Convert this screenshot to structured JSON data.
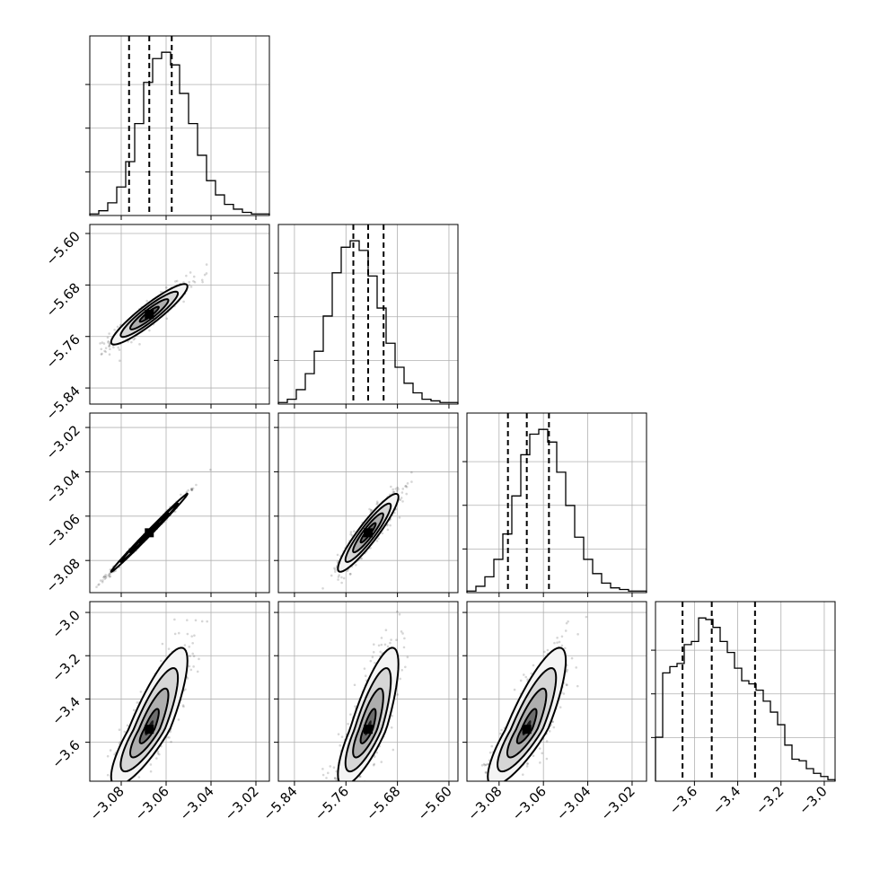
{
  "chart_data": {
    "type": "corner",
    "grid": true,
    "parameters": [
      {
        "range": [
          -3.094,
          -3.014
        ],
        "ticks": [
          -3.08,
          -3.06,
          -3.04,
          -3.02
        ],
        "tick_labels": [
          "−3.08",
          "−3.06",
          "−3.04",
          "−3.02"
        ]
      },
      {
        "range": [
          -5.865,
          -5.586
        ],
        "ticks": [
          -5.84,
          -5.76,
          -5.68,
          -5.6
        ],
        "tick_labels": [
          "−5.84",
          "−5.76",
          "−5.68",
          "−5.60"
        ]
      },
      {
        "range": [
          -3.0945,
          -3.0135
        ],
        "ticks": [
          -3.08,
          -3.06,
          -3.04,
          -3.02
        ],
        "tick_labels": [
          "−3.08",
          "−3.06",
          "−3.04",
          "−3.02"
        ]
      },
      {
        "range": [
          -3.78,
          -2.95
        ],
        "ticks": [
          -3.6,
          -3.4,
          -3.2,
          -3.0
        ],
        "tick_labels": [
          "−3.6",
          "−3.4",
          "−3.2",
          "−3.0"
        ]
      }
    ],
    "quantiles": [
      [
        -3.0765,
        -3.0675,
        -3.0575
      ],
      [
        -5.7485,
        -5.7255,
        -5.7015
      ],
      [
        -3.076,
        -3.0675,
        -3.0575
      ],
      [
        -3.655,
        -3.52,
        -3.32
      ]
    ],
    "histograms": [
      [
        1,
        3,
        8,
        18,
        34,
        58,
        84,
        99,
        103,
        95,
        77,
        58,
        38,
        22,
        13,
        7,
        4,
        2,
        1,
        1
      ],
      [
        1,
        3,
        9,
        19,
        33,
        55,
        82,
        98,
        102,
        96,
        80,
        60,
        38,
        23,
        13,
        7,
        3,
        2,
        1,
        1
      ],
      [
        1,
        4,
        10,
        21,
        37,
        61,
        87,
        100,
        103,
        95,
        76,
        55,
        35,
        21,
        12,
        6,
        3,
        2,
        1,
        1
      ],
      [
        28,
        69,
        73,
        75,
        87,
        89,
        104,
        103,
        98,
        89,
        82,
        72,
        64,
        62,
        58,
        51,
        44,
        36,
        23,
        14,
        13,
        8,
        5,
        3,
        1
      ]
    ],
    "correlations": [
      [
        1.0,
        0.92,
        0.996,
        0.84
      ],
      [
        0.92,
        1.0,
        0.92,
        0.8
      ],
      [
        0.996,
        0.92,
        1.0,
        0.84
      ],
      [
        0.84,
        0.8,
        0.84,
        1.0
      ]
    ],
    "centers": [
      -3.0675,
      -5.7255,
      -3.0675,
      -3.54
    ],
    "sigmas": [
      0.0085,
      0.0235,
      0.0088,
      0.13
    ]
  }
}
